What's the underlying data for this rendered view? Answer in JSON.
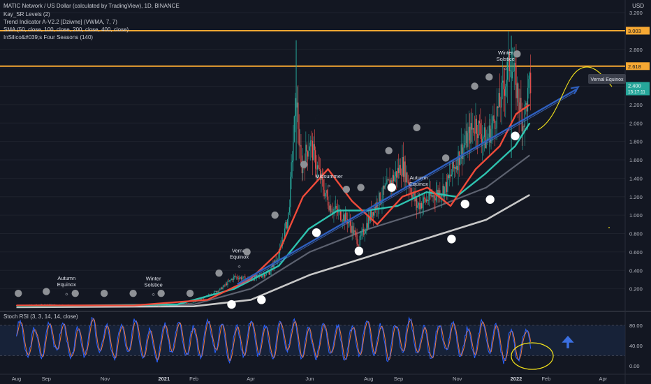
{
  "header": {
    "symbol_title": "MATIC Network / US Dollar (calculated by TradingView), 1D, BINANCE",
    "currency": "USD",
    "indicators": [
      "Kay_SR Levels (2)",
      "Trend Indicator A-V2.2 [Dziwne] (VWMA, 7, 7)",
      "SMA (50, close, 100, close, 200, close, 400, close)",
      "InSilico&#039;s Four Seasons (140)"
    ]
  },
  "rsi_panel": {
    "title": "Stoch RSI (3, 3, 14, 14, close)"
  },
  "annotations": {
    "callout": "Vernal Equinox",
    "seasons": [
      {
        "label": "Autumn Equinox",
        "date": "2020-09-22"
      },
      {
        "label": "Winter Solstice",
        "date": "2020-12-21"
      },
      {
        "label": "Vernal Equinox",
        "date": "2021-03-20"
      },
      {
        "label": "Midsummer",
        "date": "2021-06-21"
      },
      {
        "label": "Autumn Equinox",
        "date": "2021-09-22"
      },
      {
        "label": "Winter Solstice",
        "date": "2021-12-21"
      }
    ]
  },
  "colors": {
    "background": "#131722",
    "up_candle": "#26a69a",
    "down_candle": "#ef5350",
    "sr_level": "#f6a833",
    "trend_line": "#2e5fbf",
    "sma50": "#f04b3a",
    "sma100": "#2ec3b0",
    "sma200": "#5d6270",
    "sma400": "#c8c8c8",
    "rsi_k": "#2962ff",
    "rsi_d": "#f07a3c",
    "projection": "#f2e11c",
    "price_badge": "#26a69a"
  },
  "chart_data": [
    {
      "type": "candlestick",
      "title": "MATIC Network / US Dollar (calculated by TradingView), 1D, BINANCE",
      "x_axis": {
        "ticks": [
          "Aug",
          "Sep",
          "Nov",
          "2021",
          "Feb",
          "Apr",
          "Jun",
          "Aug",
          "Sep",
          "Nov",
          "2022",
          "Feb",
          "Apr"
        ]
      },
      "y_axis": {
        "label": "USD",
        "ticks": [
          "0.200",
          "0.400",
          "0.600",
          "0.800",
          "1.000",
          "1.200",
          "1.400",
          "1.600",
          "1.800",
          "2.000",
          "2.200",
          "2.400",
          "2.600",
          "2.800",
          "3.000",
          "3.200"
        ],
        "range": [
          0,
          3.2
        ]
      },
      "current_price": {
        "value": "2.400",
        "countdown": "15:17:11"
      },
      "sr_levels": [
        "3.003",
        "2.618"
      ],
      "series": [
        {
          "name": "MATIC",
          "x": [
            "2020-08-01",
            "2020-09-01",
            "2020-10-01",
            "2020-11-01",
            "2020-12-01",
            "2021-01-01",
            "2021-02-01",
            "2021-03-01",
            "2021-03-15",
            "2021-04-01",
            "2021-04-20",
            "2021-05-01",
            "2021-05-10",
            "2021-05-18",
            "2021-05-23",
            "2021-06-01",
            "2021-06-15",
            "2021-06-22",
            "2021-07-10",
            "2021-07-22",
            "2021-08-05",
            "2021-08-20",
            "2021-09-05",
            "2021-09-20",
            "2021-10-05",
            "2021-10-20",
            "2021-11-05",
            "2021-11-20",
            "2021-12-01",
            "2021-12-15",
            "2021-12-26",
            "2022-01-01",
            "2022-01-08",
            "2022-01-15"
          ],
          "y": [
            0.02,
            0.03,
            0.02,
            0.02,
            0.02,
            0.02,
            0.05,
            0.2,
            0.33,
            0.3,
            0.38,
            0.6,
            1.0,
            2.3,
            1.5,
            1.8,
            1.3,
            1.1,
            0.95,
            0.7,
            1.05,
            1.3,
            1.55,
            1.1,
            1.2,
            1.3,
            1.7,
            2.0,
            1.8,
            2.2,
            2.7,
            2.4,
            2.0,
            2.4
          ]
        },
        {
          "name": "SMA 50",
          "x": [
            "2020-08-01",
            "2020-12-01",
            "2021-02-15",
            "2021-03-31",
            "2021-04-30",
            "2021-05-25",
            "2021-06-20",
            "2021-07-15",
            "2021-08-10",
            "2021-09-05",
            "2021-10-01",
            "2021-10-25",
            "2021-11-20",
            "2021-12-15",
            "2022-01-01",
            "2022-01-15"
          ],
          "y": [
            0.02,
            0.02,
            0.08,
            0.3,
            0.6,
            1.2,
            1.5,
            1.15,
            0.9,
            1.2,
            1.3,
            1.1,
            1.5,
            1.75,
            2.1,
            2.2
          ]
        },
        {
          "name": "SMA 100",
          "x": [
            "2020-08-01",
            "2021-01-15",
            "2021-03-15",
            "2021-04-30",
            "2021-05-31",
            "2021-06-30",
            "2021-07-31",
            "2021-08-31",
            "2021-09-30",
            "2021-10-31",
            "2021-11-30",
            "2021-12-31",
            "2022-01-15"
          ],
          "y": [
            0.01,
            0.03,
            0.2,
            0.45,
            0.85,
            1.05,
            1.05,
            1.1,
            1.25,
            1.2,
            1.45,
            1.75,
            2.0
          ]
        },
        {
          "name": "SMA 200",
          "x": [
            "2020-08-01",
            "2021-02-01",
            "2021-04-01",
            "2021-06-01",
            "2021-08-01",
            "2021-10-01",
            "2021-12-01",
            "2022-01-15"
          ],
          "y": [
            0.01,
            0.03,
            0.2,
            0.6,
            0.85,
            1.05,
            1.3,
            1.65
          ]
        },
        {
          "name": "SMA 400",
          "x": [
            "2020-08-01",
            "2021-02-01",
            "2021-04-01",
            "2021-06-01",
            "2021-08-01",
            "2021-10-01",
            "2021-12-01",
            "2022-01-15"
          ],
          "y": [
            0.0,
            0.01,
            0.08,
            0.35,
            0.55,
            0.75,
            0.95,
            1.22
          ]
        },
        {
          "name": "Trend line",
          "x": [
            "2021-03-18",
            "2022-03-05"
          ],
          "y": [
            0.25,
            2.37
          ]
        }
      ]
    },
    {
      "type": "line",
      "title": "Stoch RSI (3, 3, 14, 14, close)",
      "y_axis": {
        "ticks": [
          "0.00",
          "40.00",
          "80.00"
        ],
        "range": [
          -10,
          100
        ],
        "bands": [
          20,
          80
        ]
      },
      "series": [
        {
          "name": "K",
          "x": [
            "2020-08-01",
            "2020-08-20",
            "2020-09-10",
            "2020-10-01",
            "2020-10-20",
            "2020-11-10",
            "2020-12-01",
            "2020-12-20",
            "2021-01-10",
            "2021-02-01",
            "2021-02-20",
            "2021-03-10",
            "2021-04-01",
            "2021-04-20",
            "2021-05-10",
            "2021-06-01",
            "2021-06-20",
            "2021-07-10",
            "2021-08-01",
            "2021-08-20",
            "2021-09-10",
            "2021-10-01",
            "2021-10-20",
            "2021-11-10",
            "2021-12-01",
            "2021-12-20",
            "2022-01-01",
            "2022-01-10",
            "2022-01-15"
          ],
          "y": [
            80,
            15,
            85,
            10,
            90,
            20,
            85,
            10,
            75,
            20,
            95,
            15,
            80,
            25,
            90,
            10,
            70,
            15,
            85,
            20,
            95,
            10,
            80,
            15,
            90,
            5,
            10,
            5,
            80
          ]
        }
      ]
    }
  ]
}
